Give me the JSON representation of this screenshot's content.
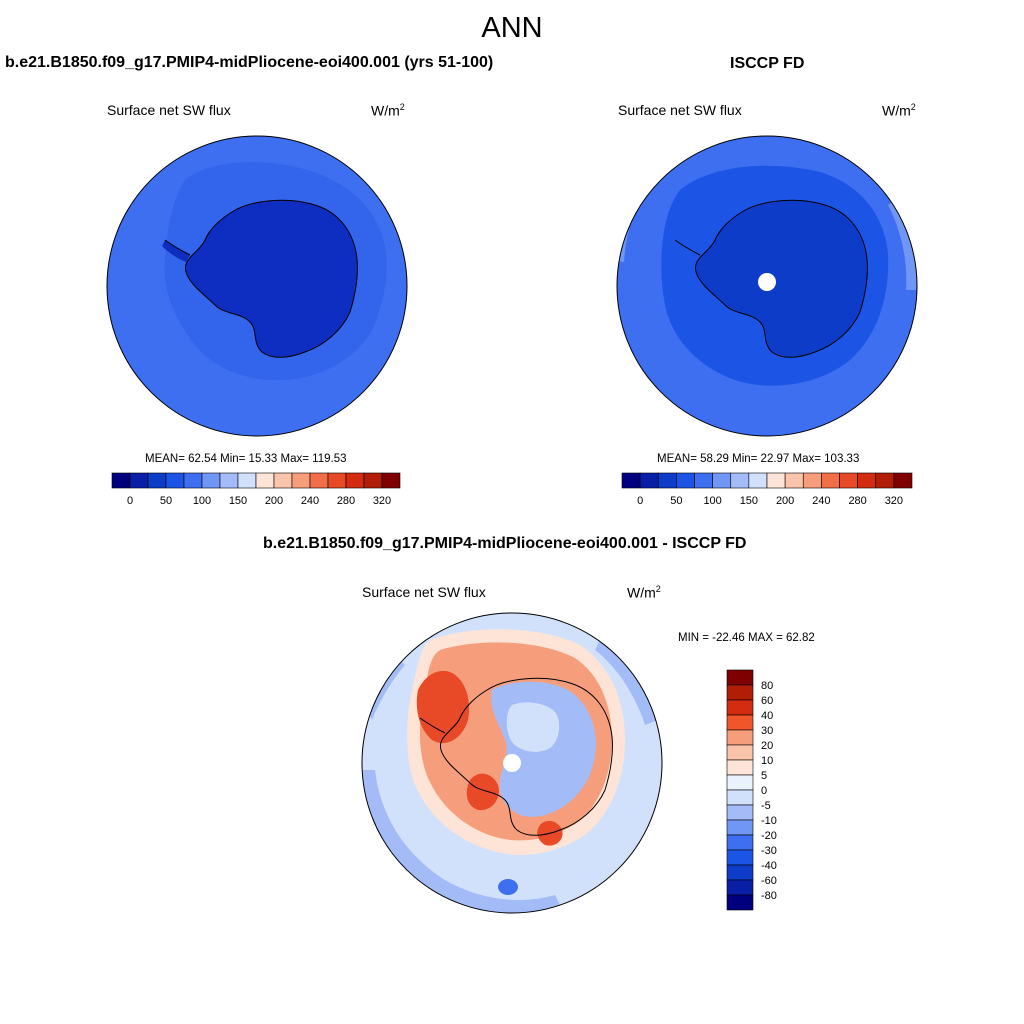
{
  "figure": {
    "title": "ANN"
  },
  "panels": [
    {
      "title": "b.e21.B1850.f09_g17.PMIP4-midPliocene-eoi400.001 (yrs 51-100)",
      "variable": "Surface net SW flux",
      "units": "W/m",
      "units_sup": "2",
      "stats_text": "MEAN=  62.54  Min=  15.33  Max= 119.53",
      "stats": {
        "mean": 62.54,
        "min": 15.33,
        "max": 119.53
      }
    },
    {
      "title": "ISCCP FD",
      "variable": "Surface net SW flux",
      "units": "W/m",
      "units_sup": "2",
      "stats_text": "MEAN=  58.29  Min=  22.97  Max= 103.33",
      "stats": {
        "mean": 58.29,
        "min": 22.97,
        "max": 103.33
      }
    },
    {
      "title": "b.e21.B1850.f09_g17.PMIP4-midPliocene-eoi400.001 - ISCCP FD",
      "variable": "Surface net SW flux",
      "units": "W/m",
      "units_sup": "2",
      "stats_text": "MIN = -22.46 MAX =  62.82",
      "stats": {
        "min": -22.46,
        "max": 62.82
      }
    }
  ],
  "colorbar_abs": {
    "colors": [
      "#00007f",
      "#0a1fa8",
      "#0d3cc9",
      "#1c55e6",
      "#3d6ff0",
      "#7097f5",
      "#a3bcf7",
      "#d2e1fb",
      "#fde4d6",
      "#f9c4aa",
      "#f69e7c",
      "#f16e49",
      "#e84a27",
      "#d42c10",
      "#b11d06",
      "#7f0000"
    ],
    "tick_labels": [
      "0",
      "50",
      "100",
      "150",
      "200",
      "240",
      "280",
      "320"
    ]
  },
  "colorbar_diff": {
    "colors": [
      "#7f0000",
      "#b11d06",
      "#d42c10",
      "#f1552a",
      "#f69e7c",
      "#f9c4aa",
      "#fde4d6",
      "#eaf2fd",
      "#d2e1fb",
      "#a3bcf7",
      "#7097f5",
      "#3d6ff0",
      "#1c55e6",
      "#0d3cc9",
      "#0a1fa8",
      "#00007f"
    ],
    "tick_labels": [
      "80",
      "60",
      "40",
      "30",
      "20",
      "10",
      "5",
      "0",
      "-5",
      "-10",
      "-20",
      "-30",
      "-40",
      "-60",
      "-80"
    ]
  },
  "colors": {
    "ocean_blue": "#3d6ff0",
    "land_dark_model": "#0d2ec0",
    "land_dark_obs": "#0d3cc9",
    "outer_light": "#7097f5",
    "pole_hole": "#ffffff",
    "diff_light_blue": "#d2e1fb",
    "diff_mid_blue": "#a3bcf7",
    "diff_orange": "#f69e7c",
    "diff_red": "#e84a27",
    "diff_pale": "#fde4d6"
  }
}
